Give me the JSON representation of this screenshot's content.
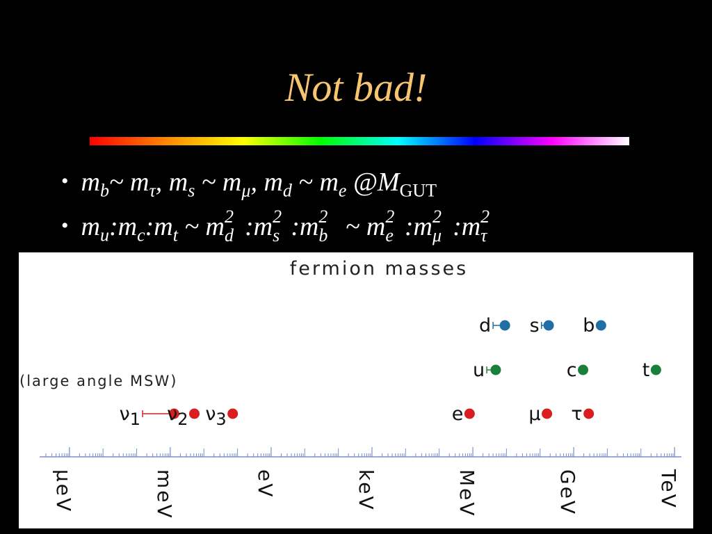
{
  "slide_title": "Not bad!",
  "bullets": [
    [
      {
        "text": "m",
        "sub": "b"
      },
      {
        "text": "~ m",
        "sub": "τ"
      },
      {
        "text": ", m",
        "sub": "s"
      },
      {
        "text": " ~ m",
        "sub": "μ"
      },
      {
        "text": ", m",
        "sub": "d"
      },
      {
        "text": " ~ m",
        "sub": "e"
      },
      {
        "text": " @M",
        "sub": "GUT",
        "sub_style": "upright"
      }
    ],
    [
      {
        "text": "m",
        "sub": "u"
      },
      {
        "text": ":m",
        "sub": "c"
      },
      {
        "text": ":m",
        "sub": "t"
      },
      {
        "text": " ~ m",
        "sub": "d",
        "sup": "2"
      },
      {
        "text": ":m",
        "sub": "s",
        "sup": "2"
      },
      {
        "text": ":m",
        "sub": "b",
        "sup": "2"
      },
      {
        "text": " ~ m",
        "sub": "e",
        "sup": "2"
      },
      {
        "text": ":m",
        "sub": "μ",
        "sup": "2"
      },
      {
        "text": ":m",
        "sub": "τ",
        "sup": "2"
      }
    ]
  ],
  "chart_data": {
    "type": "dot",
    "title": "fermion masses",
    "annotation": "(large angle MSW)",
    "log_scale": true,
    "xlim": [
      1.3e-07,
      1600000000000.0
    ],
    "xticks": [
      {
        "value": 1e-06,
        "label": "μeV"
      },
      {
        "value": 0.001,
        "label": "meV"
      },
      {
        "value": 1,
        "label": "eV"
      },
      {
        "value": 1000.0,
        "label": "keV"
      },
      {
        "value": 1000000.0,
        "label": "MeV"
      },
      {
        "value": 1000000000.0,
        "label": "GeV"
      },
      {
        "value": 1000000000000.0,
        "label": "TeV"
      }
    ],
    "rows": [
      {
        "color": "#1f6ea6",
        "points": [
          {
            "label": "d",
            "value": 9000000.0,
            "lower": 4000000.0
          },
          {
            "label": "s",
            "value": 180000000.0,
            "lower": 110000000.0
          },
          {
            "label": "b",
            "value": 6500000000.0
          }
        ]
      },
      {
        "color": "#1b7f3c",
        "points": [
          {
            "label": "u",
            "value": 4800000.0,
            "lower": 2600000.0
          },
          {
            "label": "c",
            "value": 1900000000.0
          },
          {
            "label": "t",
            "value": 280000000000.0
          }
        ]
      },
      {
        "color": "#d81e1e",
        "points": [
          {
            "label": "ν",
            "sub": "1",
            "value": 0.0013,
            "lower": 0.00015
          },
          {
            "label": "ν",
            "sub": "2",
            "value": 0.0052
          },
          {
            "label": "ν",
            "sub": "3",
            "value": 0.072
          },
          {
            "label": "e",
            "value": 800000.0
          },
          {
            "label": "μ",
            "value": 160000000.0
          },
          {
            "label": "τ",
            "value": 2800000000.0
          }
        ]
      }
    ]
  }
}
